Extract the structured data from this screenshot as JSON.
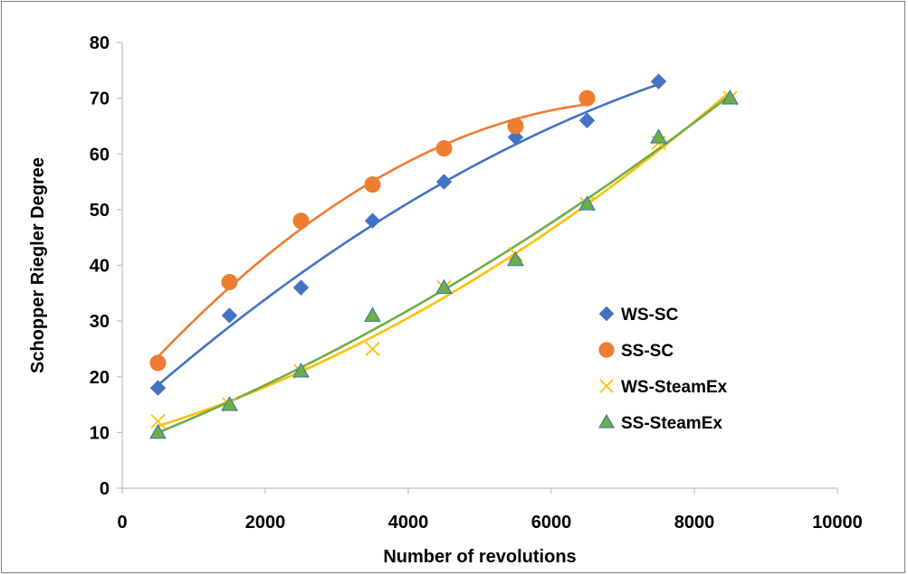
{
  "chart_data": {
    "type": "scatter",
    "title": "",
    "xlabel": "Number of revolutions",
    "ylabel": "Schopper Riegler Degree",
    "xlim": [
      0,
      10000
    ],
    "ylim": [
      0,
      80
    ],
    "x_ticks": [
      0,
      2000,
      4000,
      6000,
      8000,
      10000
    ],
    "y_ticks": [
      0,
      10,
      20,
      30,
      40,
      50,
      60,
      70,
      80
    ],
    "grid": false,
    "legend_position": "center-right",
    "trendlines": "smooth fitted curve per series",
    "series": [
      {
        "name": "WS-SC",
        "marker": "diamond",
        "color": "#4472C4",
        "x": [
          500,
          1500,
          2500,
          3500,
          4500,
          5500,
          6500,
          7500
        ],
        "y": [
          18,
          31,
          36,
          48,
          55,
          63,
          66,
          73
        ]
      },
      {
        "name": "SS-SC",
        "marker": "circle",
        "color": "#ED7D31",
        "x": [
          500,
          1500,
          2500,
          3500,
          4500,
          5500,
          6500
        ],
        "y": [
          22.5,
          37,
          48,
          54.5,
          61,
          65,
          70
        ]
      },
      {
        "name": "WS-SteamEx",
        "marker": "x",
        "color": "#FFC000",
        "x": [
          500,
          1500,
          2500,
          3500,
          4500,
          5500,
          6500,
          7500,
          8500
        ],
        "y": [
          12,
          15,
          21,
          25,
          36,
          42,
          51,
          62,
          70
        ]
      },
      {
        "name": "SS-SteamEx",
        "marker": "triangle",
        "color": "#70AD47",
        "x": [
          500,
          1500,
          2500,
          3500,
          4500,
          5500,
          6500,
          7500,
          8500
        ],
        "y": [
          10,
          15,
          21,
          31,
          36,
          41,
          51,
          63,
          70
        ]
      }
    ]
  }
}
